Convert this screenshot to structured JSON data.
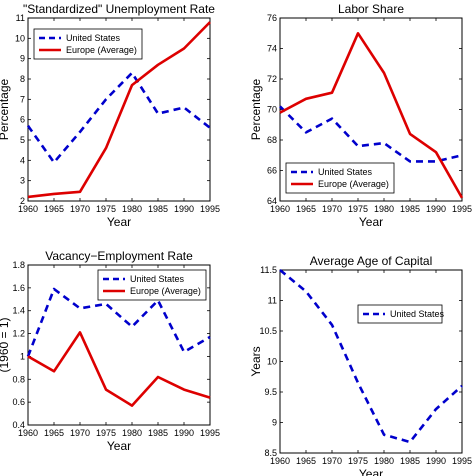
{
  "chart_data": [
    {
      "type": "line",
      "title": "\"Standardized\" Unemployment Rate",
      "xlabel": "Year",
      "ylabel": "Percentage",
      "x": [
        1960,
        1965,
        1970,
        1975,
        1980,
        1985,
        1990,
        1995
      ],
      "xlim": [
        1960,
        1995
      ],
      "ylim": [
        2,
        11
      ],
      "xticks": [
        1960,
        1965,
        1970,
        1975,
        1980,
        1985,
        1990,
        1995
      ],
      "yticks": [
        2,
        3,
        4,
        5,
        6,
        7,
        8,
        9,
        10,
        11
      ],
      "legend_position": "top-left",
      "series": [
        {
          "name": "United States",
          "color": "#0000cc",
          "style": "dashed",
          "values": [
            5.7,
            3.9,
            5.4,
            7.0,
            8.3,
            6.3,
            6.6,
            5.6
          ]
        },
        {
          "name": "Europe (Average)",
          "color": "#dd0000",
          "style": "solid",
          "values": [
            2.2,
            2.35,
            2.45,
            4.6,
            7.7,
            8.7,
            9.5,
            10.8
          ]
        }
      ]
    },
    {
      "type": "line",
      "title": "Labor Share",
      "xlabel": "Year",
      "ylabel": "Percentage",
      "x": [
        1960,
        1965,
        1970,
        1975,
        1980,
        1985,
        1990,
        1995
      ],
      "xlim": [
        1960,
        1995
      ],
      "ylim": [
        64,
        76
      ],
      "xticks": [
        1960,
        1965,
        1970,
        1975,
        1980,
        1985,
        1990,
        1995
      ],
      "yticks": [
        64,
        66,
        68,
        70,
        72,
        74,
        76
      ],
      "legend_position": "bottom-center",
      "series": [
        {
          "name": "United States",
          "color": "#0000cc",
          "style": "dashed",
          "values": [
            70.2,
            68.5,
            69.4,
            67.6,
            67.8,
            66.6,
            66.6,
            67.0
          ]
        },
        {
          "name": "Europe (Average)",
          "color": "#dd0000",
          "style": "solid",
          "values": [
            69.8,
            70.7,
            71.1,
            75.0,
            72.4,
            68.4,
            67.2,
            64.2
          ]
        }
      ]
    },
    {
      "type": "line",
      "title": "Vacancy−Employment Rate",
      "xlabel": "Year",
      "ylabel": "(1960 = 1)",
      "x": [
        1960,
        1965,
        1970,
        1975,
        1980,
        1985,
        1990,
        1995
      ],
      "xlim": [
        1960,
        1995
      ],
      "ylim": [
        0.4,
        1.8
      ],
      "xticks": [
        1960,
        1965,
        1970,
        1975,
        1980,
        1985,
        1990,
        1995
      ],
      "yticks": [
        0.4,
        0.6,
        0.8,
        1,
        1.2,
        1.4,
        1.6,
        1.8
      ],
      "legend_position": "top-right",
      "series": [
        {
          "name": "United States",
          "color": "#0000cc",
          "style": "dashed",
          "values": [
            1.0,
            1.59,
            1.42,
            1.46,
            1.26,
            1.49,
            1.04,
            1.17
          ]
        },
        {
          "name": "Europe (Average)",
          "color": "#dd0000",
          "style": "solid",
          "values": [
            1.0,
            0.87,
            1.21,
            0.71,
            0.57,
            0.82,
            0.71,
            0.64
          ]
        }
      ]
    },
    {
      "type": "line",
      "title": "Average Age of Capital",
      "xlabel": "Year",
      "ylabel": "Years",
      "x": [
        1960,
        1965,
        1970,
        1975,
        1980,
        1985,
        1990,
        1995
      ],
      "xlim": [
        1960,
        1995
      ],
      "ylim": [
        8.5,
        11.5
      ],
      "xticks": [
        1960,
        1965,
        1970,
        1975,
        1980,
        1985,
        1990,
        1995
      ],
      "yticks": [
        8.5,
        9,
        9.5,
        10,
        10.5,
        11,
        11.5
      ],
      "legend_position": "top-right",
      "series": [
        {
          "name": "United States",
          "color": "#0000cc",
          "style": "dashed",
          "values": [
            11.5,
            11.15,
            10.6,
            9.65,
            8.8,
            8.68,
            9.22,
            9.6
          ]
        }
      ]
    }
  ]
}
